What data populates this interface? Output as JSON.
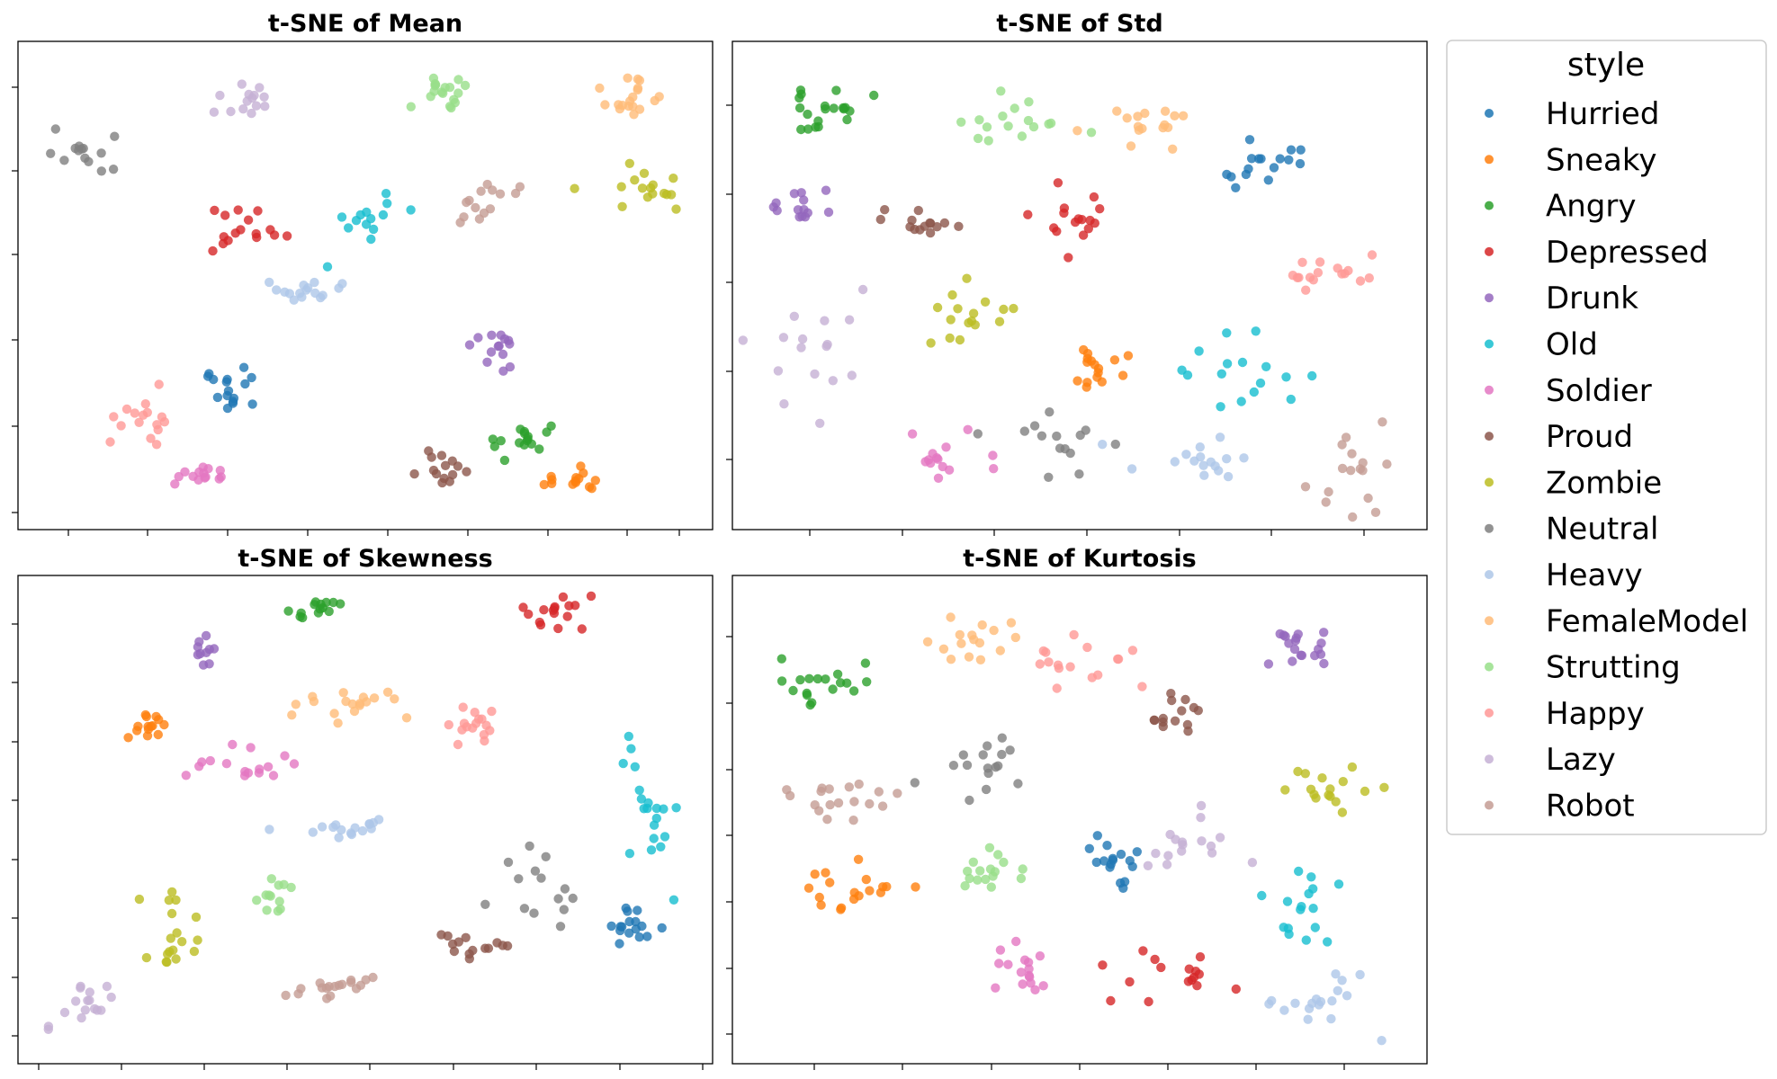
{
  "legend": {
    "title": "style",
    "entries": [
      {
        "name": "Hurried",
        "color": "#1f77b4"
      },
      {
        "name": "Sneaky",
        "color": "#ff7f0e"
      },
      {
        "name": "Angry",
        "color": "#2ca02c"
      },
      {
        "name": "Depressed",
        "color": "#d62728"
      },
      {
        "name": "Drunk",
        "color": "#9467bd"
      },
      {
        "name": "Old",
        "color": "#17becf"
      },
      {
        "name": "Soldier",
        "color": "#e377c2"
      },
      {
        "name": "Proud",
        "color": "#8c564b"
      },
      {
        "name": "Zombie",
        "color": "#bcbd22"
      },
      {
        "name": "Neutral",
        "color": "#7f7f7f"
      },
      {
        "name": "Heavy",
        "color": "#aec7e8"
      },
      {
        "name": "FemaleModel",
        "color": "#ffbb78"
      },
      {
        "name": "Strutting",
        "color": "#98df8a"
      },
      {
        "name": "Happy",
        "color": "#ff9896"
      },
      {
        "name": "Lazy",
        "color": "#c5b0d5"
      },
      {
        "name": "Robot",
        "color": "#c49c94"
      }
    ]
  },
  "chart_data": [
    {
      "type": "scatter",
      "title": "t-SNE of Mean",
      "xlabel": "",
      "ylabel": "",
      "tick_labels_visible": false,
      "grid": false,
      "xlim": [
        0,
        100
      ],
      "ylim": [
        0,
        100
      ],
      "clusters": [
        {
          "series": "Neutral",
          "cx": 8,
          "cy": 78,
          "sx": 2.5,
          "sy": 3,
          "n": 14
        },
        {
          "series": "Lazy",
          "cx": 32,
          "cy": 89,
          "sx": 2.5,
          "sy": 2.5,
          "n": 14
        },
        {
          "series": "Strutting",
          "cx": 61,
          "cy": 90,
          "sx": 3,
          "sy": 2.5,
          "n": 18
        },
        {
          "series": "FemaleModel",
          "cx": 90,
          "cy": 89,
          "sx": 2.5,
          "sy": 2,
          "n": 18
        },
        {
          "series": "Depressed",
          "cx": 32,
          "cy": 61,
          "sx": 3,
          "sy": 2.5,
          "n": 16
        },
        {
          "series": "Old",
          "cx": 50,
          "cy": 64,
          "sx": 3,
          "sy": 2.5,
          "n": 14
        },
        {
          "series": "Robot",
          "cx": 67,
          "cy": 68,
          "sx": 3,
          "sy": 2,
          "n": 14
        },
        {
          "series": "Zombie",
          "cx": 91,
          "cy": 70,
          "sx": 3,
          "sy": 2.5,
          "n": 16
        },
        {
          "series": "Heavy",
          "cx": 41,
          "cy": 49,
          "sx": 3,
          "sy": 1.5,
          "n": 16
        },
        {
          "series": "Drunk",
          "cx": 69,
          "cy": 37,
          "sx": 2,
          "sy": 2.5,
          "n": 14
        },
        {
          "series": "Hurried",
          "cx": 31,
          "cy": 28,
          "sx": 2.5,
          "sy": 2.5,
          "n": 16
        },
        {
          "series": "Happy",
          "cx": 17,
          "cy": 20,
          "sx": 2.5,
          "sy": 2.5,
          "n": 16
        },
        {
          "series": "Angry",
          "cx": 74,
          "cy": 18,
          "sx": 3,
          "sy": 1.5,
          "n": 16
        },
        {
          "series": "Soldier",
          "cx": 27,
          "cy": 10,
          "sx": 2.5,
          "sy": 1.5,
          "n": 14
        },
        {
          "series": "Proud",
          "cx": 61,
          "cy": 11,
          "sx": 2,
          "sy": 2,
          "n": 14
        },
        {
          "series": "Sneaky",
          "cx": 81,
          "cy": 9,
          "sx": 2.5,
          "sy": 2,
          "n": 14
        }
      ]
    },
    {
      "type": "scatter",
      "title": "t-SNE of Std",
      "xlabel": "",
      "ylabel": "",
      "tick_labels_visible": false,
      "grid": false,
      "xlim": [
        0,
        100
      ],
      "ylim": [
        0,
        100
      ],
      "clusters": [
        {
          "series": "Angry",
          "cx": 12,
          "cy": 88,
          "sx": 3,
          "sy": 3,
          "n": 20
        },
        {
          "series": "Strutting",
          "cx": 40,
          "cy": 84,
          "sx": 4,
          "sy": 3.5,
          "n": 16
        },
        {
          "series": "FemaleModel",
          "cx": 60,
          "cy": 84,
          "sx": 3.5,
          "sy": 2.5,
          "n": 16
        },
        {
          "series": "Hurried",
          "cx": 78,
          "cy": 75,
          "sx": 3,
          "sy": 2.5,
          "n": 16
        },
        {
          "series": "Drunk",
          "cx": 10,
          "cy": 67,
          "sx": 3,
          "sy": 2.5,
          "n": 14
        },
        {
          "series": "Proud",
          "cx": 27,
          "cy": 62,
          "sx": 3,
          "sy": 2,
          "n": 14
        },
        {
          "series": "Depressed",
          "cx": 50,
          "cy": 63,
          "sx": 3.5,
          "sy": 4,
          "n": 16
        },
        {
          "series": "Happy",
          "cx": 87,
          "cy": 52,
          "sx": 3.5,
          "sy": 2,
          "n": 16
        },
        {
          "series": "Lazy",
          "cx": 11,
          "cy": 38,
          "sx": 4,
          "sy": 6,
          "n": 16
        },
        {
          "series": "Zombie",
          "cx": 33,
          "cy": 43,
          "sx": 4,
          "sy": 3.5,
          "n": 16
        },
        {
          "series": "Sneaky",
          "cx": 52,
          "cy": 34,
          "sx": 3,
          "sy": 2.5,
          "n": 16
        },
        {
          "series": "Old",
          "cx": 74,
          "cy": 31,
          "sx": 5,
          "sy": 4,
          "n": 16
        },
        {
          "series": "Soldier",
          "cx": 28,
          "cy": 13,
          "sx": 4,
          "sy": 2.5,
          "n": 14
        },
        {
          "series": "Neutral",
          "cx": 46,
          "cy": 15,
          "sx": 4,
          "sy": 4,
          "n": 14
        },
        {
          "series": "Heavy",
          "cx": 67,
          "cy": 13,
          "sx": 4,
          "sy": 2.5,
          "n": 16
        },
        {
          "series": "Robot",
          "cx": 90,
          "cy": 12,
          "sx": 3.5,
          "sy": 5,
          "n": 16
        }
      ]
    },
    {
      "type": "scatter",
      "title": "t-SNE of Skewness",
      "xlabel": "",
      "ylabel": "",
      "tick_labels_visible": false,
      "grid": false,
      "xlim": [
        0,
        100
      ],
      "ylim": [
        0,
        100
      ],
      "clusters": [
        {
          "series": "Angry",
          "cx": 43,
          "cy": 94,
          "sx": 2,
          "sy": 1.5,
          "n": 14
        },
        {
          "series": "Depressed",
          "cx": 78,
          "cy": 93,
          "sx": 2.5,
          "sy": 2.5,
          "n": 16
        },
        {
          "series": "Drunk",
          "cx": 26,
          "cy": 85,
          "sx": 1,
          "sy": 1.5,
          "n": 10
        },
        {
          "series": "FemaleModel",
          "cx": 48,
          "cy": 74,
          "sx": 4,
          "sy": 1.2,
          "n": 18
        },
        {
          "series": "Sneaky",
          "cx": 19,
          "cy": 70,
          "sx": 1.5,
          "sy": 1.5,
          "n": 14
        },
        {
          "series": "Happy",
          "cx": 65,
          "cy": 70,
          "sx": 2,
          "sy": 3,
          "n": 16
        },
        {
          "series": "Soldier",
          "cx": 31,
          "cy": 62,
          "sx": 4,
          "sy": 2,
          "n": 16
        },
        {
          "series": "Old",
          "cx": 91,
          "cy": 55,
          "sx": 3,
          "sy": 10,
          "n": 20
        },
        {
          "series": "Heavy",
          "cx": 48,
          "cy": 48,
          "sx": 4.5,
          "sy": 1,
          "n": 16
        },
        {
          "series": "Neutral",
          "cx": 74,
          "cy": 35,
          "sx": 4,
          "sy": 6,
          "n": 14
        },
        {
          "series": "Strutting",
          "cx": 36,
          "cy": 34,
          "sx": 1.5,
          "sy": 1.5,
          "n": 12
        },
        {
          "series": "Zombie",
          "cx": 21,
          "cy": 24,
          "sx": 2.5,
          "sy": 6,
          "n": 18
        },
        {
          "series": "Hurried",
          "cx": 90,
          "cy": 27,
          "sx": 2.5,
          "sy": 2,
          "n": 16
        },
        {
          "series": "Proud",
          "cx": 66,
          "cy": 23,
          "sx": 3,
          "sy": 1.5,
          "n": 14
        },
        {
          "series": "Robot",
          "cx": 46,
          "cy": 14,
          "sx": 5,
          "sy": 2,
          "n": 18
        },
        {
          "series": "Lazy",
          "cx": 8,
          "cy": 10,
          "sx": 3,
          "sy": 3.5,
          "n": 16
        }
      ]
    },
    {
      "type": "scatter",
      "title": "t-SNE of Kurtosis",
      "xlabel": "",
      "ylabel": "",
      "tick_labels_visible": false,
      "grid": false,
      "xlim": [
        0,
        100
      ],
      "ylim": [
        0,
        100
      ],
      "clusters": [
        {
          "series": "FemaleModel",
          "cx": 35,
          "cy": 88,
          "sx": 3,
          "sy": 3,
          "n": 16
        },
        {
          "series": "Happy",
          "cx": 50,
          "cy": 84,
          "sx": 4,
          "sy": 3,
          "n": 16
        },
        {
          "series": "Drunk",
          "cx": 83,
          "cy": 86,
          "sx": 3,
          "sy": 3.5,
          "n": 18
        },
        {
          "series": "Angry",
          "cx": 12,
          "cy": 79,
          "sx": 3.5,
          "sy": 3,
          "n": 18
        },
        {
          "series": "Proud",
          "cx": 63,
          "cy": 72,
          "sx": 3,
          "sy": 3.5,
          "n": 14
        },
        {
          "series": "Neutral",
          "cx": 36,
          "cy": 60,
          "sx": 3.5,
          "sy": 3,
          "n": 16
        },
        {
          "series": "Zombie",
          "cx": 86,
          "cy": 58,
          "sx": 4,
          "sy": 2.5,
          "n": 16
        },
        {
          "series": "Robot",
          "cx": 14,
          "cy": 54,
          "sx": 5,
          "sy": 3.5,
          "n": 18
        },
        {
          "series": "Hurried",
          "cx": 54,
          "cy": 42,
          "sx": 3,
          "sy": 3.5,
          "n": 16
        },
        {
          "series": "Lazy",
          "cx": 66,
          "cy": 44,
          "sx": 4,
          "sy": 3.5,
          "n": 16
        },
        {
          "series": "Strutting",
          "cx": 36,
          "cy": 40,
          "sx": 3,
          "sy": 3,
          "n": 16
        },
        {
          "series": "Sneaky",
          "cx": 17,
          "cy": 36,
          "sx": 4,
          "sy": 3.5,
          "n": 18
        },
        {
          "series": "Old",
          "cx": 83,
          "cy": 32,
          "sx": 3,
          "sy": 4.5,
          "n": 16
        },
        {
          "series": "Soldier",
          "cx": 42,
          "cy": 17,
          "sx": 2.5,
          "sy": 4,
          "n": 16
        },
        {
          "series": "Depressed",
          "cx": 63,
          "cy": 18,
          "sx": 4,
          "sy": 3.5,
          "n": 16
        },
        {
          "series": "Heavy",
          "cx": 86,
          "cy": 11,
          "sx": 4.5,
          "sy": 3,
          "n": 18
        }
      ]
    }
  ]
}
